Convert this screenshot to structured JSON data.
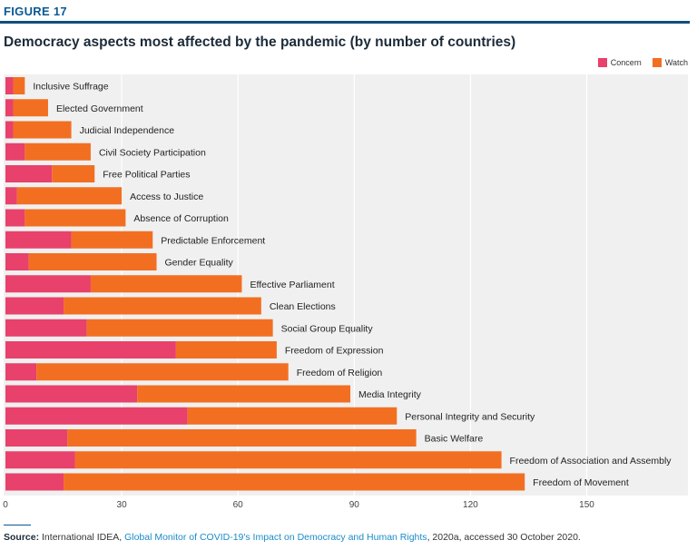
{
  "figure": {
    "label": "FIGURE 17",
    "title": "Democracy aspects most affected by the pandemic (by number of countries)"
  },
  "legend": [
    {
      "name": "Concern",
      "color": "#e8416b"
    },
    {
      "name": "Watch",
      "color": "#f26f22"
    }
  ],
  "source": {
    "label": "Source:",
    "org": "International IDEA,",
    "link": "Global Monitor of COVID-19's Impact on Democracy and Human Rights",
    "tail": ", 2020a, accessed 30 October 2020."
  },
  "chart_data": {
    "type": "bar",
    "orientation": "horizontal",
    "stacked": true,
    "xlim": [
      0,
      175
    ],
    "xticks": [
      0,
      30,
      60,
      90,
      120,
      150
    ],
    "grid": "vertical",
    "legend_position": "top-right",
    "categories": [
      "Inclusive Suffrage",
      "Elected Government",
      "Judicial Independence",
      "Civil Society Participation",
      "Free Political Parties",
      "Access to Justice",
      "Absence of Corruption",
      "Predictable Enforcement",
      "Gender Equality",
      "Effective Parliament",
      "Clean Elections",
      "Social Group Equality",
      "Freedom of Expression",
      "Freedom of Religion",
      "Media Integrity",
      "Personal Integrity and Security",
      "Basic Welfare",
      "Freedom of Association and Assembly",
      "Freedom of Movement"
    ],
    "series": [
      {
        "name": "Concern",
        "color": "#e8416b",
        "values": [
          2,
          2,
          2,
          5,
          12,
          3,
          5,
          17,
          6,
          22,
          15,
          21,
          44,
          8,
          34,
          47,
          16,
          18,
          15
        ]
      },
      {
        "name": "Watch",
        "color": "#f26f22",
        "values": [
          3,
          9,
          15,
          17,
          11,
          27,
          26,
          21,
          33,
          39,
          51,
          48,
          26,
          65,
          55,
          54,
          90,
          110,
          119
        ]
      }
    ]
  }
}
